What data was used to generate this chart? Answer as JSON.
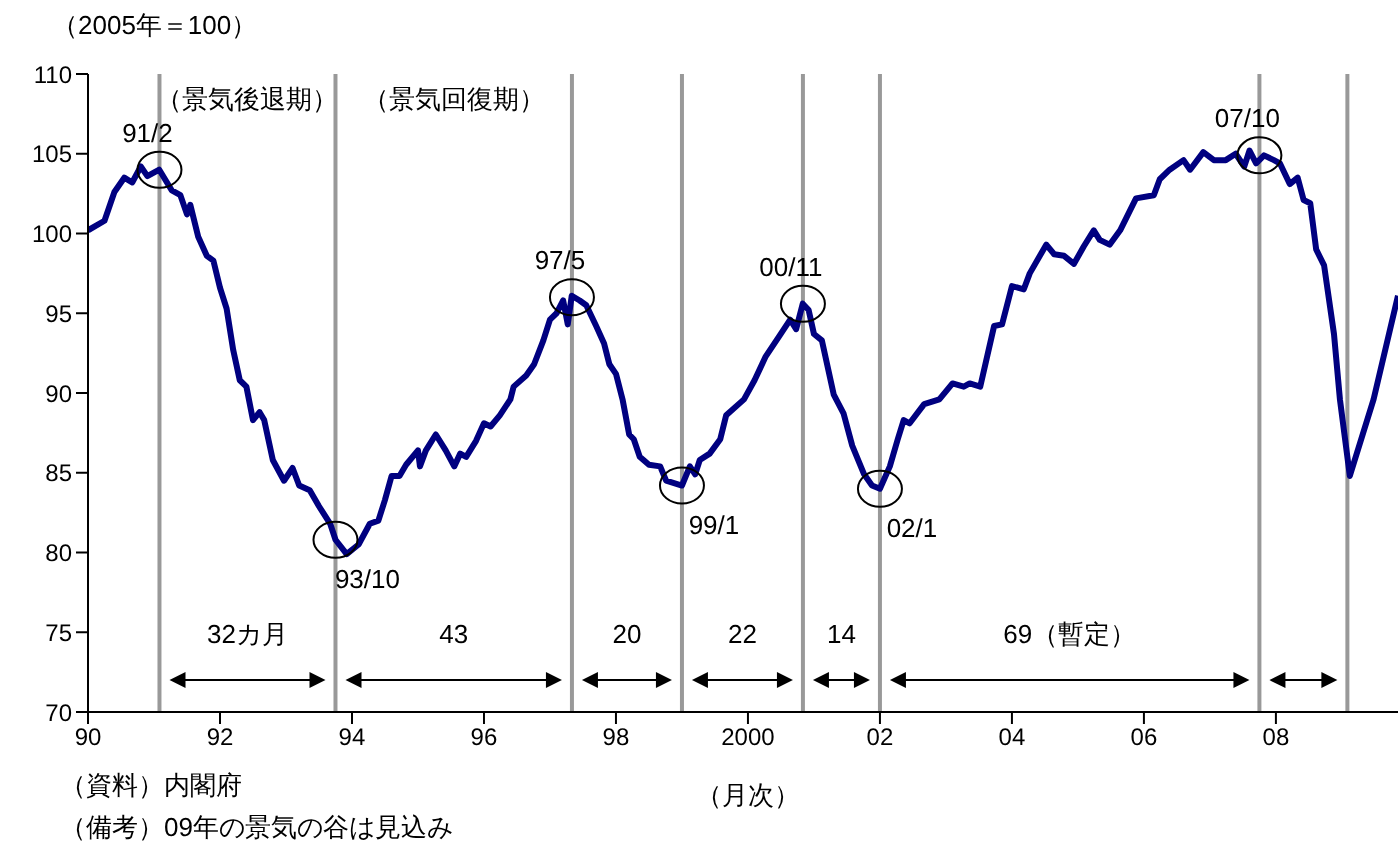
{
  "chart_data": {
    "type": "line",
    "ylabel": "（2005年＝100）",
    "xlabel": "（月次）",
    "color": "#000080",
    "x": [
      1990.0,
      1990.25,
      1990.4,
      1990.55,
      1990.67,
      1990.8,
      1990.9,
      1991.08,
      1991.27,
      1991.4,
      1991.5,
      1991.55,
      1991.67,
      1991.8,
      1991.9,
      1992.0,
      1992.1,
      1992.2,
      1992.3,
      1992.4,
      1992.5,
      1992.6,
      1992.67,
      1992.8,
      1992.97,
      1993.1,
      1993.2,
      1993.36,
      1993.5,
      1993.67,
      1993.75,
      1993.92,
      1994.1,
      1994.27,
      1994.4,
      1994.5,
      1994.6,
      1994.72,
      1994.82,
      1995.0,
      1995.03,
      1995.12,
      1995.27,
      1995.42,
      1995.55,
      1995.64,
      1995.73,
      1995.88,
      1996.0,
      1996.1,
      1996.24,
      1996.4,
      1996.45,
      1996.64,
      1996.76,
      1996.9,
      1997.0,
      1997.1,
      1997.2,
      1997.27,
      1997.33,
      1997.45,
      1997.55,
      1997.7,
      1997.82,
      1997.9,
      1998.0,
      1998.1,
      1998.2,
      1998.27,
      1998.36,
      1998.5,
      1998.67,
      1998.76,
      1999.0,
      1999.12,
      1999.2,
      1999.27,
      1999.42,
      1999.58,
      1999.67,
      1999.94,
      2000.1,
      2000.27,
      2000.48,
      2000.64,
      2000.73,
      2000.83,
      2000.92,
      2001.0,
      2001.12,
      2001.3,
      2001.45,
      2001.58,
      2001.76,
      2001.88,
      2002.0,
      2002.15,
      2002.27,
      2002.36,
      2002.45,
      2002.67,
      2002.9,
      2003.1,
      2003.27,
      2003.36,
      2003.52,
      2003.73,
      2003.85,
      2004.0,
      2004.18,
      2004.27,
      2004.52,
      2004.64,
      2004.79,
      2004.94,
      2005.09,
      2005.24,
      2005.33,
      2005.48,
      2005.64,
      2005.88,
      2006.15,
      2006.24,
      2006.39,
      2006.6,
      2006.7,
      2006.9,
      2007.06,
      2007.24,
      2007.39,
      2007.52,
      2007.6,
      2007.7,
      2007.82,
      2007.97,
      2008.06,
      2008.21,
      2008.33,
      2008.42,
      2008.52,
      2008.61,
      2008.73,
      2008.88,
      2008.97,
      2009.12,
      2009.48,
      2009.85
    ],
    "values": [
      100.2,
      100.8,
      102.6,
      103.5,
      103.2,
      104.2,
      103.6,
      104.0,
      102.7,
      102.4,
      101.2,
      101.8,
      99.8,
      98.6,
      98.3,
      96.6,
      95.3,
      92.7,
      90.8,
      90.4,
      88.3,
      88.8,
      88.3,
      85.8,
      84.5,
      85.3,
      84.2,
      83.9,
      82.9,
      81.8,
      80.8,
      79.9,
      80.5,
      81.8,
      82.0,
      83.3,
      84.8,
      84.8,
      85.5,
      86.4,
      85.4,
      86.4,
      87.4,
      86.4,
      85.4,
      86.2,
      86.0,
      87.0,
      88.1,
      87.9,
      88.6,
      89.6,
      90.4,
      91.1,
      91.8,
      93.3,
      94.6,
      95.0,
      95.8,
      94.3,
      96.1,
      95.8,
      95.5,
      94.2,
      93.1,
      91.8,
      91.2,
      89.6,
      87.4,
      87.1,
      86.0,
      85.5,
      85.4,
      84.5,
      84.2,
      85.4,
      84.9,
      85.8,
      86.2,
      87.1,
      88.6,
      89.6,
      90.8,
      92.3,
      93.6,
      94.6,
      94.0,
      95.6,
      95.2,
      93.7,
      93.3,
      89.9,
      88.7,
      86.7,
      84.9,
      84.2,
      84.0,
      85.4,
      87.1,
      88.3,
      88.1,
      89.3,
      89.6,
      90.6,
      90.4,
      90.6,
      90.4,
      94.2,
      94.3,
      96.7,
      96.5,
      97.5,
      99.3,
      98.7,
      98.6,
      98.1,
      99.2,
      100.2,
      99.6,
      99.3,
      100.2,
      102.2,
      102.4,
      103.4,
      104.0,
      104.6,
      104.0,
      105.1,
      104.6,
      104.6,
      105.0,
      104.2,
      105.2,
      104.4,
      104.9,
      104.6,
      104.4,
      103.1,
      103.5,
      102.1,
      101.9,
      99.0,
      98.0,
      93.7,
      89.6,
      84.8,
      89.6,
      96.1
    ],
    "xlim": [
      1990,
      2009.85
    ],
    "ylim": [
      70,
      110
    ],
    "xticks": [
      {
        "value": 1990,
        "label": "90"
      },
      {
        "value": 1992,
        "label": "92"
      },
      {
        "value": 1994,
        "label": "94"
      },
      {
        "value": 1996,
        "label": "96"
      },
      {
        "value": 1998,
        "label": "98"
      },
      2000,
      {
        "value": 2002,
        "label": "02"
      },
      {
        "value": 2004,
        "label": "04"
      },
      {
        "value": 2006,
        "label": "06"
      },
      {
        "value": 2008,
        "label": "08"
      }
    ],
    "yticks": [
      70,
      75,
      80,
      85,
      90,
      95,
      100,
      105,
      110
    ],
    "ref_lines": [
      {
        "axis": "x",
        "value": 1991.083,
        "color": "#999999"
      },
      {
        "axis": "x",
        "value": 1993.75,
        "color": "#999999"
      },
      {
        "axis": "x",
        "value": 1997.333,
        "color": "#999999"
      },
      {
        "axis": "x",
        "value": 1999.0,
        "color": "#999999"
      },
      {
        "axis": "x",
        "value": 2000.833,
        "color": "#999999"
      },
      {
        "axis": "x",
        "value": 2002.0,
        "color": "#999999"
      },
      {
        "axis": "x",
        "value": 2007.75,
        "color": "#999999"
      },
      {
        "axis": "x",
        "value": 2009.083,
        "color": "#999999"
      }
    ],
    "annotations": [
      {
        "text": "91/2",
        "x": 1991.083,
        "y": 104.0
      },
      {
        "text": "93/10",
        "x": 1993.75,
        "y": 80.8
      },
      {
        "text": "97/5",
        "x": 1997.333,
        "y": 96.0
      },
      {
        "text": "99/1",
        "x": 1999.0,
        "y": 84.2
      },
      {
        "text": "00/11",
        "x": 2000.833,
        "y": 95.6
      },
      {
        "text": "02/1",
        "x": 2002.0,
        "y": 84.0
      },
      {
        "text": "07/10",
        "x": 2007.75,
        "y": 104.9
      },
      "（景気後退期）",
      "（景気回復期）",
      "32カ月",
      "43",
      "20",
      "22",
      "14",
      "69（暫定）",
      "（資料）内閣府",
      "（備考）09年の景気の谷は見込み"
    ]
  }
}
